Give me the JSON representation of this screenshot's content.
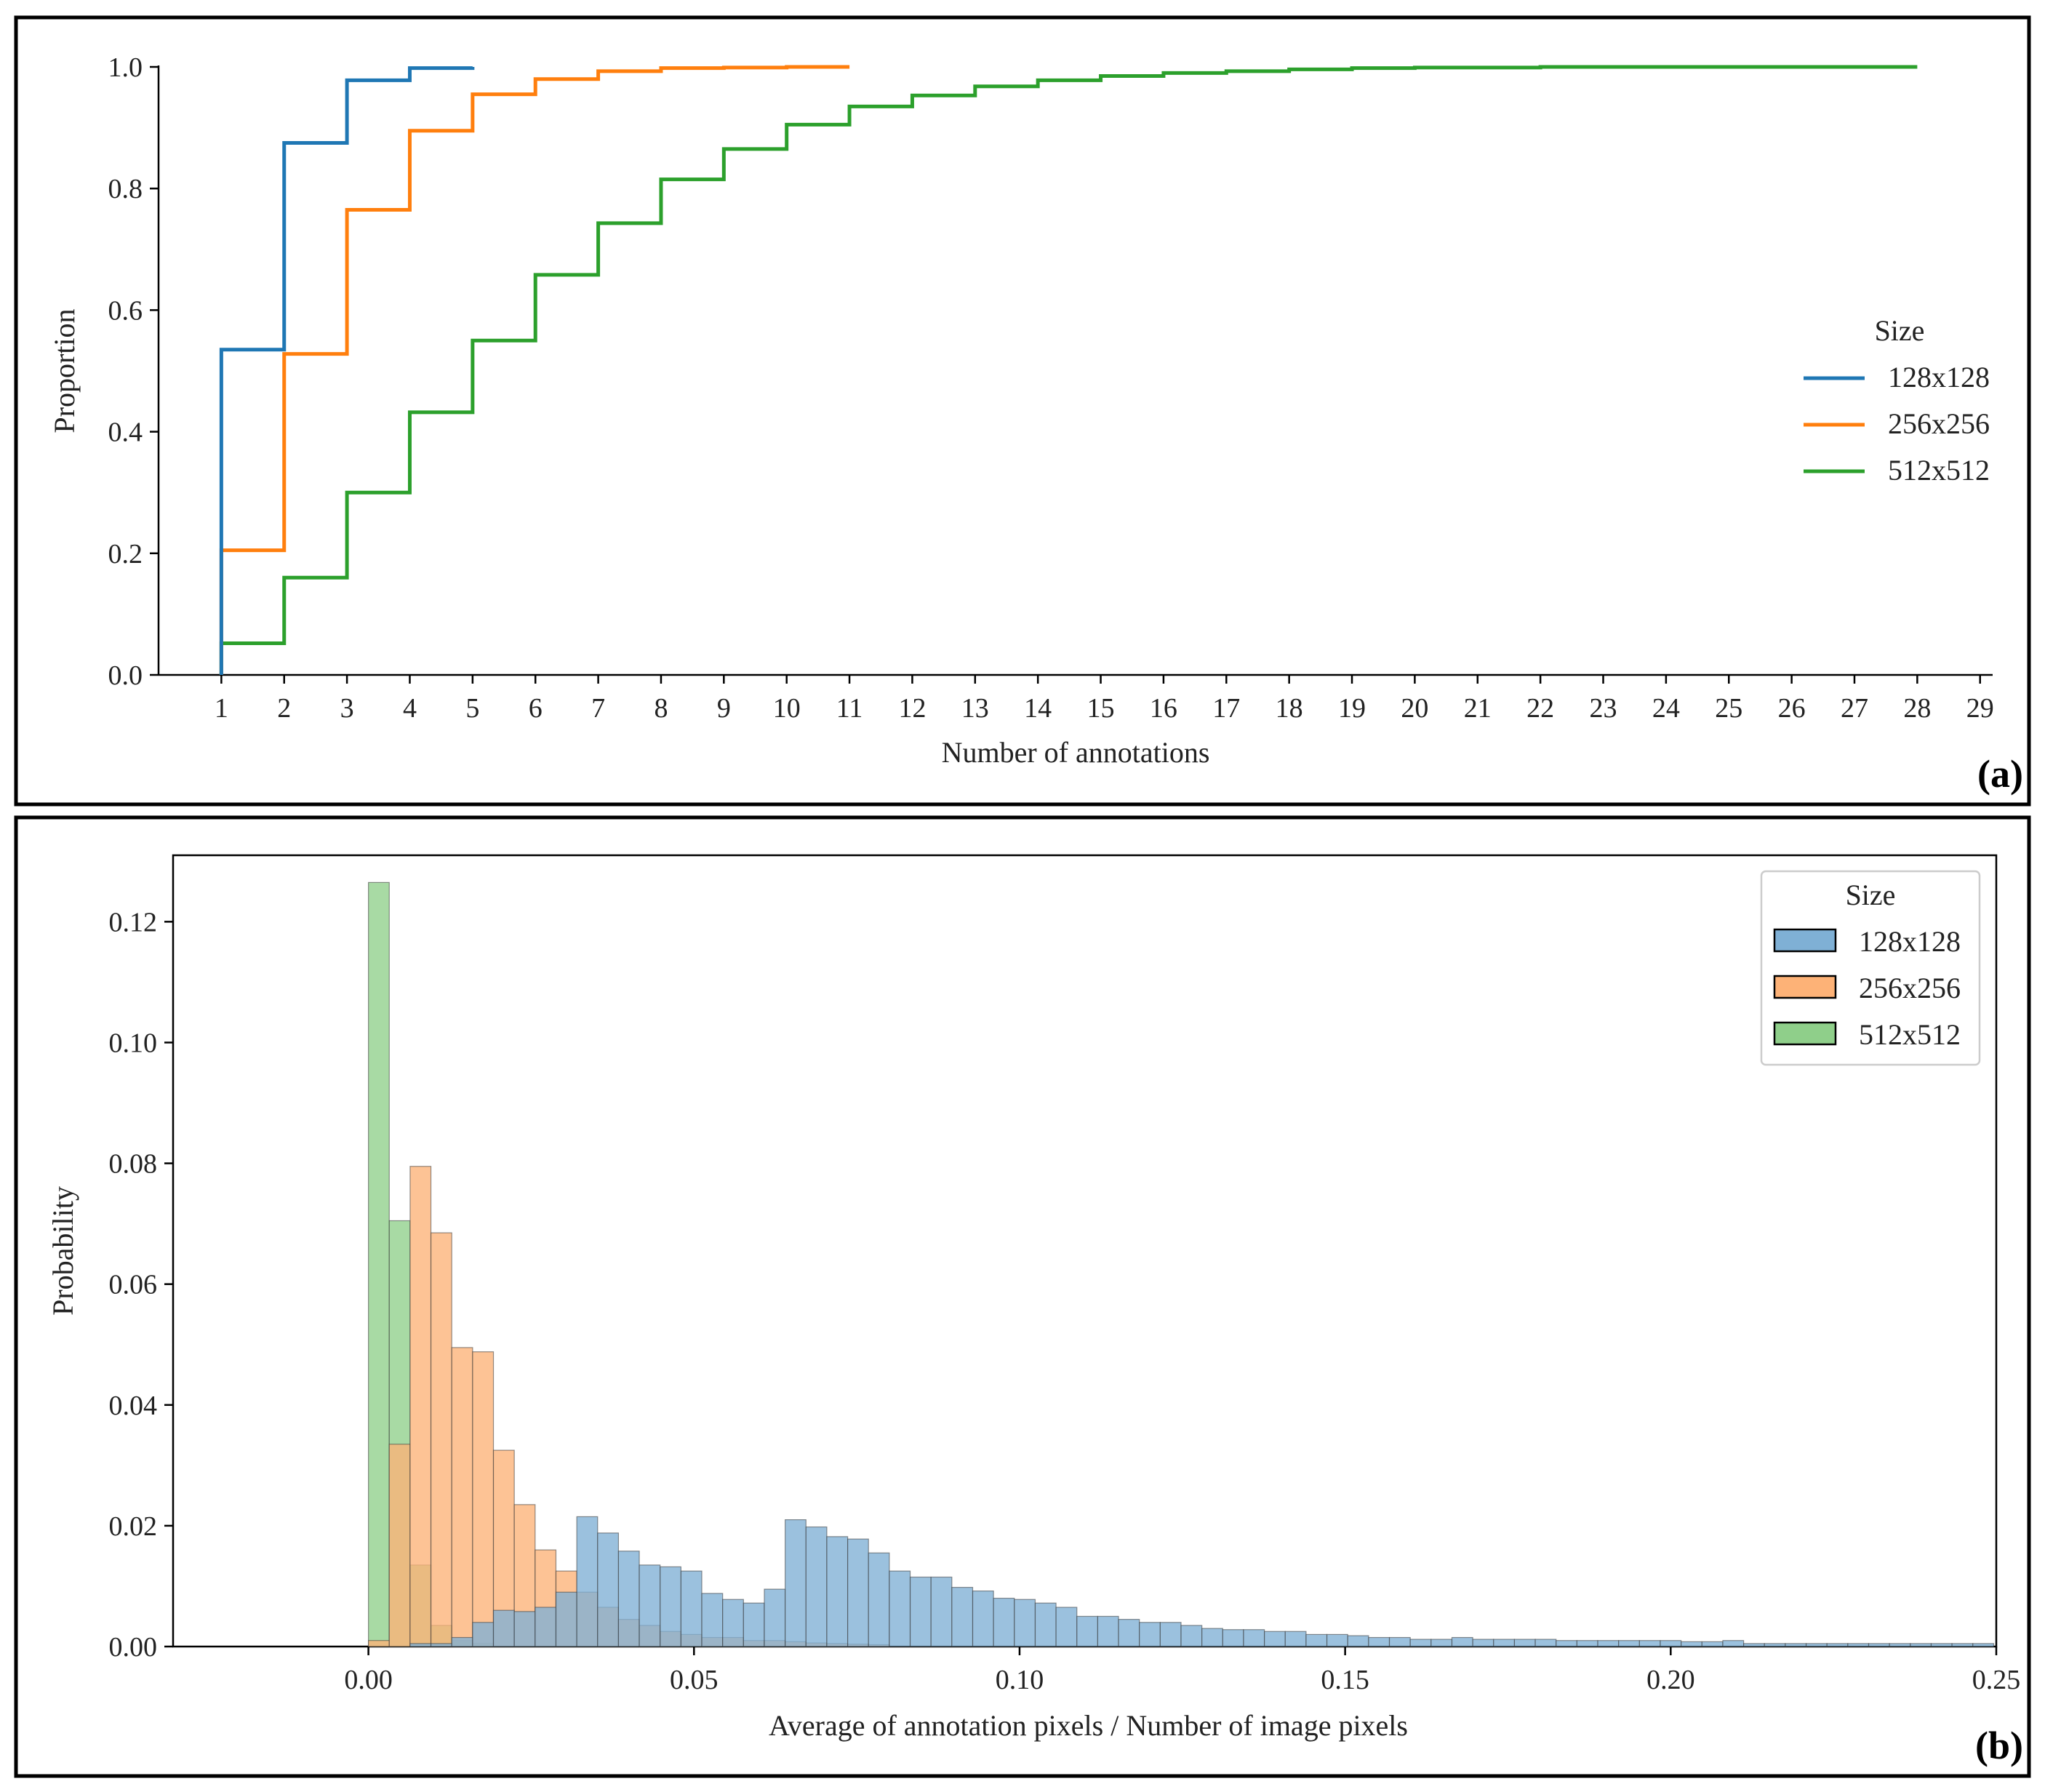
{
  "colors": {
    "blue": "#1f77b4",
    "orange": "#ff7f0e",
    "green": "#2ca02c",
    "blue_fill": "#7fb0d5",
    "orange_fill": "#fdb277",
    "green_fill": "#8fcf8a"
  },
  "chart_data": [
    {
      "type": "line",
      "step": true,
      "panel_tag": "(a)",
      "xlabel": "Number of annotations",
      "ylabel": "Proportion",
      "xlim": [
        0,
        29.2
      ],
      "ylim": [
        0,
        1.0
      ],
      "x_ticks": [
        1,
        2,
        3,
        4,
        5,
        6,
        7,
        8,
        9,
        10,
        11,
        12,
        13,
        14,
        15,
        16,
        17,
        18,
        19,
        20,
        21,
        22,
        23,
        24,
        25,
        26,
        27,
        28,
        29
      ],
      "x_tick_labels": [
        "1",
        "2",
        "3",
        "4",
        "5",
        "6",
        "7",
        "8",
        "9",
        "10",
        "11",
        "12",
        "13",
        "14",
        "15",
        "16",
        "17",
        "18",
        "19",
        "20",
        "21",
        "22",
        "23",
        "24",
        "25",
        "26",
        "27",
        "28",
        "29"
      ],
      "y_ticks": [
        0.0,
        0.2,
        0.4,
        0.6,
        0.8,
        1.0
      ],
      "y_tick_labels": [
        "0.0",
        "0.2",
        "0.4",
        "0.6",
        "0.8",
        "1.0"
      ],
      "legend_title": "Size",
      "legend_position": "center-right",
      "series": [
        {
          "name": "128x128",
          "color_key": "blue",
          "x": [
            1,
            2,
            3,
            4,
            5
          ],
          "values": [
            0.535,
            0.875,
            0.978,
            0.998,
            1.0
          ]
        },
        {
          "name": "256x256",
          "color_key": "orange",
          "x": [
            1,
            2,
            3,
            4,
            5,
            6,
            7,
            8,
            9,
            10,
            11
          ],
          "values": [
            0.205,
            0.528,
            0.765,
            0.895,
            0.955,
            0.98,
            0.993,
            0.998,
            0.999,
            1.0,
            1.0
          ]
        },
        {
          "name": "512x512",
          "color_key": "green",
          "x": [
            1,
            2,
            3,
            4,
            5,
            6,
            7,
            8,
            9,
            10,
            11,
            12,
            13,
            14,
            15,
            16,
            17,
            18,
            19,
            20,
            21,
            22,
            23,
            24,
            25,
            26,
            27,
            28
          ],
          "values": [
            0.052,
            0.16,
            0.3,
            0.432,
            0.55,
            0.658,
            0.743,
            0.815,
            0.865,
            0.905,
            0.935,
            0.953,
            0.968,
            0.978,
            0.985,
            0.99,
            0.993,
            0.996,
            0.998,
            0.999,
            0.999,
            1.0,
            1.0,
            1.0,
            1.0,
            1.0,
            1.0,
            1.0
          ]
        }
      ]
    },
    {
      "type": "bar",
      "histogram": true,
      "panel_tag": "(b)",
      "xlabel": "Average of annotation pixels / Number of image pixels",
      "ylabel": "Probability",
      "xlim": [
        -0.03,
        0.25
      ],
      "ylim": [
        0,
        0.131
      ],
      "bin_width": 0.0032,
      "x_ticks": [
        0.0,
        0.05,
        0.1,
        0.15,
        0.2,
        0.25
      ],
      "x_tick_labels": [
        "0.00",
        "0.05",
        "0.10",
        "0.15",
        "0.20",
        "0.25"
      ],
      "y_ticks": [
        0.0,
        0.02,
        0.04,
        0.06,
        0.08,
        0.1,
        0.12
      ],
      "y_tick_labels": [
        "0.00",
        "0.02",
        "0.04",
        "0.06",
        "0.08",
        "0.10",
        "0.12"
      ],
      "legend_title": "Size",
      "legend_position": "top-right",
      "series": [
        {
          "name": "512x512",
          "color_key": "green_fill",
          "bin_start": 0.0,
          "values": [
            0.1265,
            0.0705,
            0.0135,
            0.0035,
            0.001,
            0.0005
          ]
        },
        {
          "name": "256x256",
          "color_key": "orange_fill",
          "bin_start": 0.0,
          "values": [
            0.001,
            0.0335,
            0.0795,
            0.0685,
            0.0495,
            0.0488,
            0.0325,
            0.0235,
            0.016,
            0.0125,
            0.009,
            0.0065,
            0.0045,
            0.0035,
            0.0025,
            0.002,
            0.0015,
            0.0015,
            0.001,
            0.001,
            0.0008,
            0.0006,
            0.0005,
            0.0004,
            0.0003
          ]
        },
        {
          "name": "128x128",
          "color_key": "blue_fill",
          "bin_start": 0.0,
          "values": [
            0.0,
            0.0,
            0.0005,
            0.0005,
            0.0015,
            0.004,
            0.006,
            0.0058,
            0.0065,
            0.009,
            0.0215,
            0.0188,
            0.0158,
            0.0135,
            0.0132,
            0.0125,
            0.0088,
            0.0078,
            0.0072,
            0.0095,
            0.021,
            0.0198,
            0.0182,
            0.0178,
            0.0155,
            0.0125,
            0.0115,
            0.0115,
            0.0098,
            0.0092,
            0.008,
            0.0078,
            0.0072,
            0.0065,
            0.005,
            0.005,
            0.0045,
            0.004,
            0.004,
            0.0035,
            0.003,
            0.0028,
            0.0028,
            0.0025,
            0.0025,
            0.002,
            0.002,
            0.0018,
            0.0015,
            0.0015,
            0.0012,
            0.0012,
            0.0015,
            0.0012,
            0.0012,
            0.0012,
            0.0012,
            0.001,
            0.001,
            0.001,
            0.001,
            0.001,
            0.001,
            0.0008,
            0.0008,
            0.001,
            0.0005,
            0.0005,
            0.0005,
            0.0005,
            0.0005,
            0.0005,
            0.0005,
            0.0005,
            0.0005,
            0.0005,
            0.0005,
            0.0005
          ]
        }
      ]
    }
  ]
}
